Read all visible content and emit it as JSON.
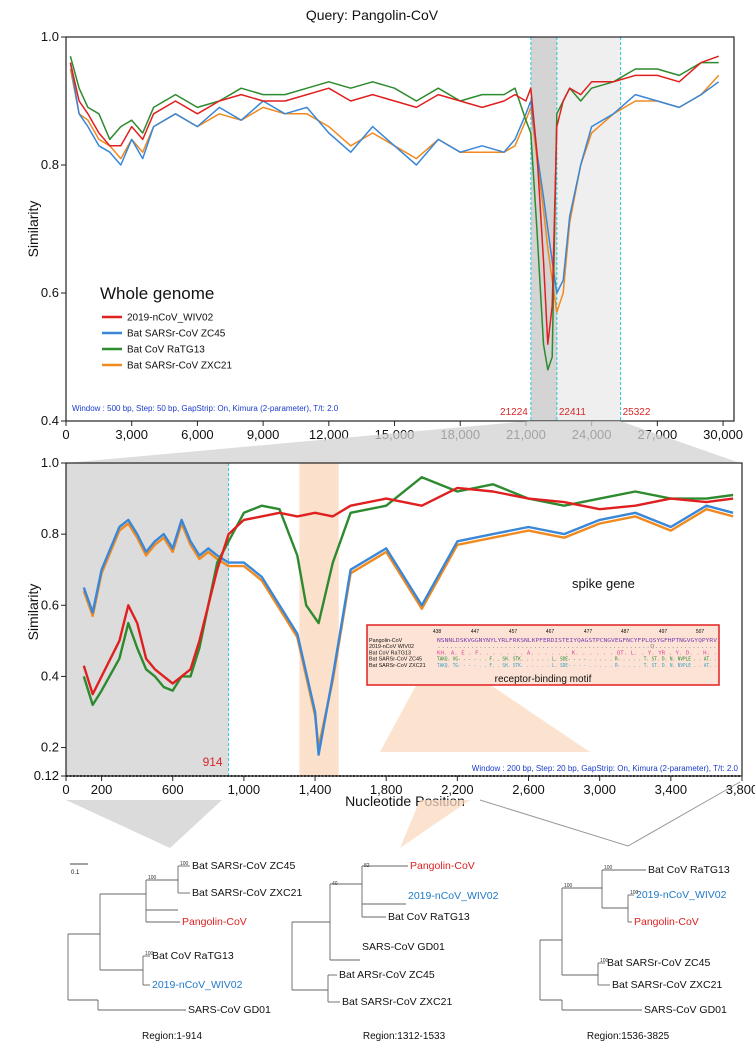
{
  "figure": {
    "title": "Query: Pangolin-CoV"
  },
  "chart_data": [
    {
      "type": "line",
      "panel": "whole-genome",
      "title": "Whole genome",
      "xlabel": "",
      "ylabel": "Similarity",
      "xlim": [
        0,
        30500
      ],
      "ylim": [
        0.4,
        1.0
      ],
      "xticks": [
        "0",
        "3,000",
        "6,000",
        "9,000",
        "12,000",
        "15,000",
        "18,000",
        "21,000",
        "24,000",
        "27,000",
        "30,000"
      ],
      "yticks": [
        "0.4",
        "0.6",
        "0.8",
        "1.0"
      ],
      "note": "Window : 500 bp, Step: 50 bp, GapStrip: On, Kimura (2-parameter), T/t: 2.0",
      "markers": [
        {
          "x": 21224,
          "label": "21224"
        },
        {
          "x": 22411,
          "label": "22411"
        },
        {
          "x": 25322,
          "label": "25322"
        }
      ],
      "shaded_regions": [
        {
          "from": 21224,
          "to": 22411,
          "color": "#d4d4d4"
        },
        {
          "from": 22411,
          "to": 25322,
          "color": "#efefef"
        }
      ],
      "series": [
        {
          "name": "2019-nCoV_WIV02",
          "color": "#e02020",
          "x": [
            200,
            600,
            1000,
            1500,
            2000,
            2500,
            3000,
            3500,
            4000,
            5000,
            6000,
            7000,
            8000,
            9000,
            10000,
            11000,
            12000,
            13000,
            14000,
            15000,
            16000,
            17000,
            18000,
            19000,
            20000,
            20500,
            21000,
            21224,
            21500,
            21800,
            22000,
            22200,
            22411,
            22700,
            23000,
            23500,
            24000,
            25000,
            26000,
            27000,
            28000,
            29000,
            29800
          ],
          "y": [
            0.96,
            0.9,
            0.88,
            0.85,
            0.83,
            0.83,
            0.86,
            0.84,
            0.88,
            0.9,
            0.88,
            0.9,
            0.91,
            0.9,
            0.9,
            0.91,
            0.92,
            0.9,
            0.91,
            0.9,
            0.89,
            0.91,
            0.9,
            0.89,
            0.9,
            0.91,
            0.9,
            0.92,
            0.82,
            0.65,
            0.52,
            0.58,
            0.86,
            0.9,
            0.92,
            0.91,
            0.93,
            0.93,
            0.94,
            0.94,
            0.93,
            0.96,
            0.97
          ]
        },
        {
          "name": "Bat SARSr-CoV ZC45",
          "color": "#3a87d8",
          "x": [
            200,
            600,
            1000,
            1500,
            2000,
            2500,
            3000,
            3500,
            4000,
            5000,
            6000,
            7000,
            8000,
            9000,
            10000,
            11000,
            12000,
            13000,
            14000,
            15000,
            16000,
            17000,
            18000,
            19000,
            20000,
            20500,
            21000,
            21224,
            21500,
            21800,
            22000,
            22200,
            22411,
            22700,
            23000,
            23500,
            24000,
            25000,
            26000,
            27000,
            28000,
            29000,
            29800
          ],
          "y": [
            0.96,
            0.88,
            0.86,
            0.83,
            0.82,
            0.8,
            0.84,
            0.81,
            0.86,
            0.88,
            0.86,
            0.89,
            0.87,
            0.9,
            0.88,
            0.89,
            0.85,
            0.82,
            0.86,
            0.83,
            0.8,
            0.84,
            0.82,
            0.83,
            0.82,
            0.84,
            0.88,
            0.9,
            0.82,
            0.75,
            0.7,
            0.65,
            0.6,
            0.62,
            0.72,
            0.8,
            0.86,
            0.88,
            0.91,
            0.9,
            0.89,
            0.91,
            0.93
          ]
        },
        {
          "name": "Bat CoV RaTG13",
          "color": "#2e8a2e",
          "x": [
            200,
            600,
            1000,
            1500,
            2000,
            2500,
            3000,
            3500,
            4000,
            5000,
            6000,
            7000,
            8000,
            9000,
            10000,
            11000,
            12000,
            13000,
            14000,
            15000,
            16000,
            17000,
            18000,
            19000,
            20000,
            20500,
            21000,
            21224,
            21500,
            21800,
            22000,
            22200,
            22411,
            22700,
            23000,
            23500,
            24000,
            25000,
            26000,
            27000,
            28000,
            29000,
            29800
          ],
          "y": [
            0.97,
            0.92,
            0.89,
            0.88,
            0.84,
            0.86,
            0.87,
            0.85,
            0.89,
            0.91,
            0.89,
            0.9,
            0.92,
            0.91,
            0.91,
            0.92,
            0.93,
            0.92,
            0.93,
            0.92,
            0.9,
            0.92,
            0.9,
            0.91,
            0.91,
            0.92,
            0.87,
            0.85,
            0.7,
            0.52,
            0.48,
            0.5,
            0.88,
            0.9,
            0.92,
            0.9,
            0.92,
            0.93,
            0.95,
            0.95,
            0.94,
            0.96,
            0.96
          ]
        },
        {
          "name": "Bat SARSr-CoV ZXC21",
          "color": "#f08a1e",
          "x": [
            200,
            600,
            1000,
            1500,
            2000,
            2500,
            3000,
            3500,
            4000,
            5000,
            6000,
            7000,
            8000,
            9000,
            10000,
            11000,
            12000,
            13000,
            14000,
            15000,
            16000,
            17000,
            18000,
            19000,
            20000,
            20500,
            21000,
            21224,
            21500,
            21800,
            22000,
            22200,
            22411,
            22700,
            23000,
            23500,
            24000,
            25000,
            26000,
            27000,
            28000,
            29000,
            29800
          ],
          "y": [
            0.95,
            0.88,
            0.87,
            0.84,
            0.83,
            0.81,
            0.84,
            0.82,
            0.86,
            0.88,
            0.86,
            0.88,
            0.87,
            0.89,
            0.88,
            0.88,
            0.86,
            0.83,
            0.85,
            0.83,
            0.81,
            0.84,
            0.82,
            0.82,
            0.82,
            0.83,
            0.87,
            0.89,
            0.81,
            0.73,
            0.67,
            0.62,
            0.57,
            0.6,
            0.71,
            0.8,
            0.85,
            0.88,
            0.9,
            0.9,
            0.89,
            0.91,
            0.94
          ]
        }
      ]
    },
    {
      "type": "line",
      "panel": "spike-gene",
      "title": "spike gene",
      "xlabel": "Nucleotide Position",
      "ylabel": "Similarity",
      "xlim": [
        0,
        3800
      ],
      "ylim": [
        0.12,
        1.0
      ],
      "xticks": [
        "0",
        "200",
        "600",
        "1,000",
        "1,400",
        "1,800",
        "2,200",
        "2,600",
        "3,000",
        "3,400",
        "3,800"
      ],
      "yticks": [
        "0.12",
        "0.2",
        "0.4",
        "0.6",
        "0.8",
        "1.0"
      ],
      "note": "Window : 200 bp, Step: 20 bp, GapStrip: On, Kimura (2-parameter), T/t: 2.0",
      "markers": [
        {
          "x": 914,
          "label": "914"
        }
      ],
      "shaded_regions": [
        {
          "from": 0,
          "to": 914,
          "color": "#dcdcdc"
        },
        {
          "from": 1312,
          "to": 1533,
          "color": "#fbe0cc"
        }
      ],
      "series": [
        {
          "name": "2019-nCoV_WIV02",
          "color": "#e02020",
          "x": [
            100,
            150,
            200,
            300,
            350,
            400,
            450,
            500,
            550,
            600,
            650,
            700,
            750,
            800,
            850,
            914,
            1000,
            1100,
            1200,
            1300,
            1400,
            1500,
            1600,
            1800,
            2000,
            2200,
            2400,
            2600,
            2800,
            3000,
            3200,
            3400,
            3600,
            3750
          ],
          "y": [
            0.43,
            0.35,
            0.4,
            0.5,
            0.6,
            0.55,
            0.45,
            0.42,
            0.4,
            0.38,
            0.4,
            0.42,
            0.5,
            0.6,
            0.7,
            0.8,
            0.84,
            0.85,
            0.86,
            0.85,
            0.86,
            0.85,
            0.88,
            0.9,
            0.88,
            0.93,
            0.92,
            0.9,
            0.89,
            0.87,
            0.88,
            0.9,
            0.89,
            0.9
          ]
        },
        {
          "name": "Bat SARSr-CoV ZC45",
          "color": "#3a87d8",
          "x": [
            100,
            150,
            200,
            300,
            350,
            400,
            450,
            500,
            550,
            600,
            650,
            700,
            750,
            800,
            850,
            914,
            1000,
            1100,
            1200,
            1300,
            1400,
            1420,
            1500,
            1600,
            1800,
            2000,
            2200,
            2400,
            2600,
            2800,
            3000,
            3200,
            3400,
            3600,
            3750
          ],
          "y": [
            0.65,
            0.58,
            0.7,
            0.82,
            0.84,
            0.8,
            0.75,
            0.78,
            0.8,
            0.76,
            0.84,
            0.78,
            0.74,
            0.76,
            0.74,
            0.72,
            0.72,
            0.68,
            0.6,
            0.52,
            0.3,
            0.18,
            0.4,
            0.7,
            0.76,
            0.6,
            0.78,
            0.8,
            0.82,
            0.8,
            0.84,
            0.86,
            0.82,
            0.88,
            0.86
          ]
        },
        {
          "name": "Bat CoV RaTG13",
          "color": "#2e8a2e",
          "x": [
            100,
            150,
            200,
            300,
            350,
            400,
            450,
            500,
            550,
            600,
            650,
            700,
            750,
            800,
            850,
            914,
            1000,
            1100,
            1200,
            1300,
            1350,
            1420,
            1500,
            1600,
            1800,
            2000,
            2200,
            2400,
            2600,
            2800,
            3000,
            3200,
            3400,
            3600,
            3750
          ],
          "y": [
            0.4,
            0.32,
            0.36,
            0.45,
            0.55,
            0.48,
            0.42,
            0.4,
            0.37,
            0.36,
            0.4,
            0.4,
            0.48,
            0.6,
            0.72,
            0.78,
            0.86,
            0.88,
            0.87,
            0.74,
            0.6,
            0.55,
            0.72,
            0.86,
            0.88,
            0.96,
            0.92,
            0.94,
            0.9,
            0.88,
            0.9,
            0.92,
            0.9,
            0.9,
            0.91
          ]
        },
        {
          "name": "Bat SARSr-CoV ZXC21",
          "color": "#f08a1e",
          "x": [
            100,
            150,
            200,
            300,
            350,
            400,
            450,
            500,
            550,
            600,
            650,
            700,
            750,
            800,
            850,
            914,
            1000,
            1100,
            1200,
            1300,
            1400,
            1420,
            1500,
            1600,
            1800,
            2000,
            2200,
            2400,
            2600,
            2800,
            3000,
            3200,
            3400,
            3600,
            3750
          ],
          "y": [
            0.64,
            0.57,
            0.69,
            0.81,
            0.83,
            0.79,
            0.74,
            0.77,
            0.79,
            0.75,
            0.83,
            0.77,
            0.73,
            0.75,
            0.73,
            0.71,
            0.71,
            0.67,
            0.59,
            0.51,
            0.29,
            0.2,
            0.39,
            0.69,
            0.75,
            0.59,
            0.77,
            0.79,
            0.81,
            0.79,
            0.83,
            0.85,
            0.81,
            0.87,
            0.85
          ]
        }
      ]
    }
  ],
  "inset": {
    "caption": "receptor-binding motif",
    "positions": [
      "438",
      "447",
      "457",
      "467",
      "477",
      "487",
      "497",
      "507"
    ],
    "rows": [
      {
        "name": "Pangolin-CoV",
        "seq": "NSNNLDSKVGGNYNYLYRLFRKSNLKPFERDISTEIYQAGSTPCNGVEGFNCYFPLQSYGFHPTNGVGYQPYRV"
      },
      {
        "name": "2019-nCoV WIV02",
        "seq": "...................................................Q..............."
      },
      {
        "name": "Bat CoV RaTG13",
        "seq": "KH. A. E . F. . . . . . . A. . . . . . K. . . . . . QT. L. . Y. YR . Y. D. . H. ."
      },
      {
        "name": "Bat SARSr-CoV ZC45",
        "seq": "TAKQ. VG- - - - . . F. . SH. STK. . . . . . L. SDE- - - - . . . . . R- . . . . T. ST. D. N. NVPLE . . AT. ."
      },
      {
        "name": "Bat SARSr-CoV ZXC21",
        "seq": "TAKQ. TG- - - - . . F. . SH. STK. . . . . . L. SDE- - - - . . . . . R- . . . . T. ST. D. N. NVPLE . . AT. ."
      }
    ]
  },
  "trees": {
    "scale": "0.1",
    "list": [
      {
        "region": "Region:1-914",
        "leaves": [
          "Bat SARSr-CoV ZC45",
          "Bat SARSr-CoV ZXC21",
          "Pangolin-CoV",
          "Bat CoV RaTG13",
          "2019-nCoV_WIV02",
          "SARS-CoV GD01"
        ],
        "bootstrap": [
          "100",
          "100",
          "100"
        ]
      },
      {
        "region": "Region:1312-1533",
        "leaves": [
          "Pangolin-CoV",
          "2019-nCoV_WIV02",
          "Bat CoV RaTG13",
          "SARS-CoV GD01",
          "Bat ARSr-CoV ZC45",
          "Bat SARSr-CoV ZXC21"
        ],
        "bootstrap": [
          "82",
          "40"
        ]
      },
      {
        "region": "Region:1536-3825",
        "leaves": [
          "Bat CoV RaTG13",
          "2019-nCoV_WIV02",
          "Pangolin-CoV",
          "Bat SARSr-CoV ZC45",
          "Bat SARSr-CoV ZXC21",
          "SARS-CoV GD01"
        ],
        "bootstrap": [
          "100",
          "100",
          "100",
          "100"
        ]
      }
    ]
  },
  "colors": {
    "red": "#e02020",
    "blue": "#3a87d8",
    "green": "#2e8a2e",
    "orange": "#f08a1e",
    "cyan": "#2bc6d8",
    "note_blue": "#1a3ccc"
  }
}
